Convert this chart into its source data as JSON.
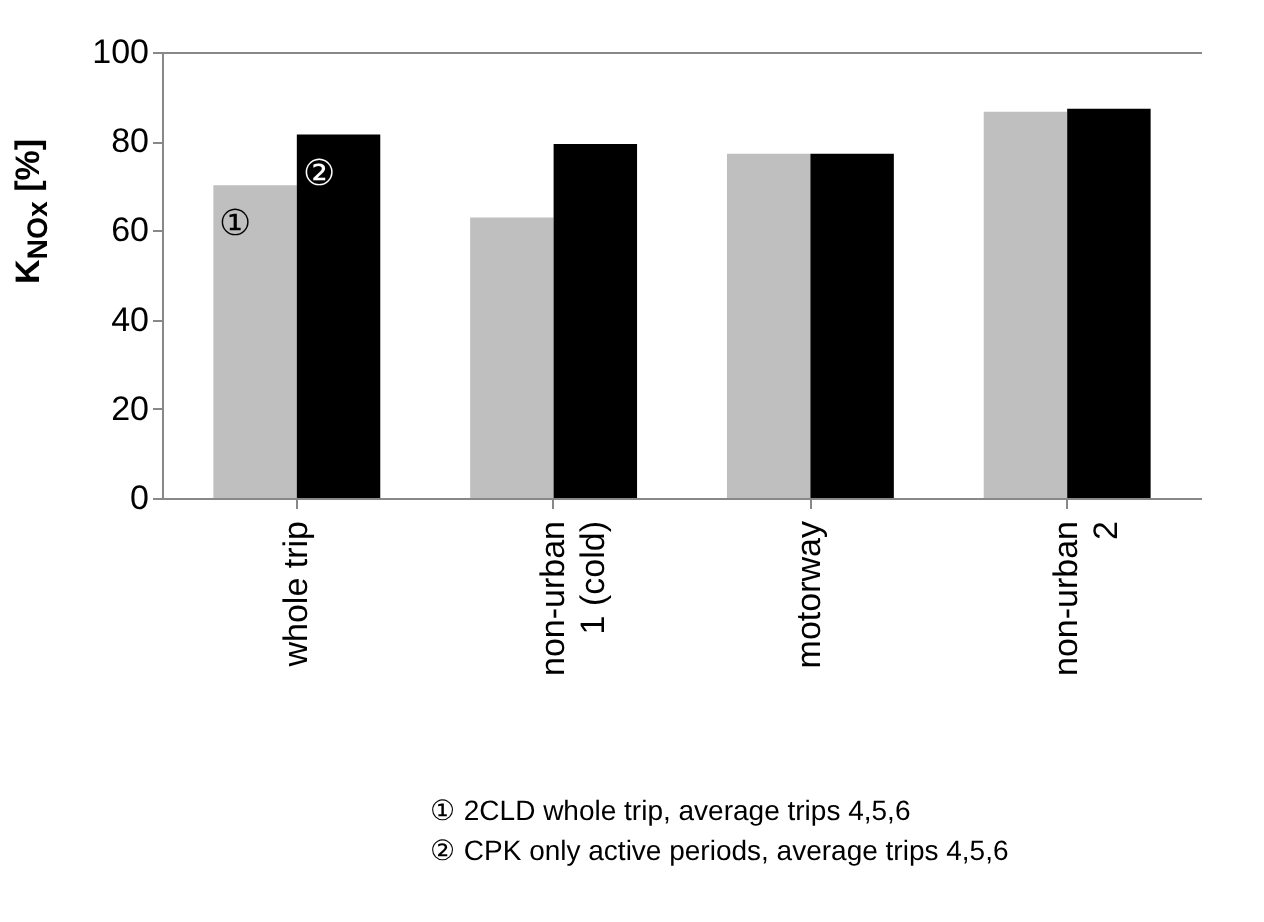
{
  "chart_data": {
    "type": "bar",
    "ylabel": "K$_{NOx}$ [%]",
    "categories": [
      "whole trip",
      "non-urban\n1 (cold)",
      "motorway",
      "non-urban\n2"
    ],
    "series": [
      {
        "name": "①",
        "color": "#bfbfbf",
        "values": [
          70.1,
          62.9,
          77.2,
          86.6
        ]
      },
      {
        "name": "②",
        "color": "#000000",
        "values": [
          81.5,
          79.4,
          77.2,
          87.3
        ]
      }
    ],
    "ylim": [
      0,
      100
    ],
    "yticks": [
      0,
      20,
      40,
      60,
      80,
      100
    ],
    "grid": false,
    "legend": false,
    "annotations": [
      "① 2CLD whole trip, average trips 4,5,6",
      "② CPK only active periods, average trips 4,5,6"
    ]
  }
}
